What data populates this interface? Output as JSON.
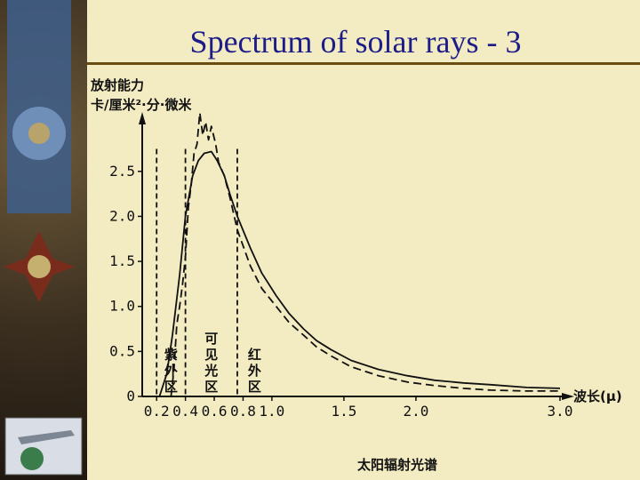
{
  "slide": {
    "title": "Spectrum of solar rays - 3"
  },
  "chart_data": {
    "type": "line",
    "title": "太阳辐射光谱",
    "ylabel": [
      "放射能力",
      "卡/厘米²·分·微米"
    ],
    "xlabel": "波长(μ)",
    "xlim": [
      0.1,
      3.0
    ],
    "ylim": [
      0,
      3.1
    ],
    "x_ticks": [
      0.2,
      0.4,
      0.6,
      0.8,
      1.0,
      1.5,
      2.0,
      3.0
    ],
    "x_tick_labels": [
      "0.2",
      "0.4",
      "0.6",
      "0.8",
      "1.0",
      "1.5",
      "2.0",
      "3.0"
    ],
    "y_ticks": [
      0,
      0.5,
      1.0,
      1.5,
      2.0,
      2.5
    ],
    "y_tick_labels": [
      "0",
      "0.5",
      "1.0",
      "1.5",
      "2.0",
      "2.5"
    ],
    "regions": [
      {
        "label": "紫外区",
        "from": 0.2,
        "to": 0.4
      },
      {
        "label": "可见光区",
        "from": 0.4,
        "to": 0.76
      },
      {
        "label": "红外区",
        "from": 0.76,
        "to": 1.0
      }
    ],
    "series": [
      {
        "style": "solid",
        "x": [
          0.22,
          0.27,
          0.31,
          0.36,
          0.4,
          0.45,
          0.49,
          0.53,
          0.58,
          0.62,
          0.67,
          0.71,
          0.76,
          0.85,
          0.93,
          1.03,
          1.12,
          1.22,
          1.31,
          1.41,
          1.55,
          1.74,
          1.94,
          2.13,
          2.33,
          2.52,
          2.77,
          3.0
        ],
        "y": [
          0,
          0.25,
          0.68,
          1.35,
          2.0,
          2.45,
          2.62,
          2.7,
          2.72,
          2.62,
          2.45,
          2.24,
          2.0,
          1.65,
          1.37,
          1.12,
          0.92,
          0.75,
          0.62,
          0.52,
          0.4,
          0.3,
          0.23,
          0.18,
          0.15,
          0.13,
          0.1,
          0.09
        ]
      },
      {
        "style": "dashed",
        "x": [
          0.3,
          0.32,
          0.34,
          0.36,
          0.38,
          0.4,
          0.42,
          0.44,
          0.46,
          0.48,
          0.5,
          0.52,
          0.54,
          0.56,
          0.58,
          0.61,
          0.63,
          0.67,
          0.71,
          0.76,
          0.85,
          0.93,
          1.03,
          1.12,
          1.22,
          1.31,
          1.41,
          1.55,
          1.74,
          1.94,
          2.13,
          2.33,
          2.52,
          2.77,
          3.0
        ],
        "y": [
          0,
          0.3,
          0.8,
          1.0,
          1.25,
          1.55,
          2.1,
          2.35,
          2.7,
          2.8,
          3.15,
          2.9,
          3.05,
          2.85,
          3.0,
          2.8,
          2.6,
          2.45,
          2.2,
          1.85,
          1.45,
          1.2,
          1.0,
          0.82,
          0.68,
          0.55,
          0.45,
          0.33,
          0.23,
          0.16,
          0.12,
          0.09,
          0.07,
          0.06,
          0.06
        ]
      }
    ]
  },
  "decor": {
    "accent": "#1d1d8a",
    "rule": "#6b4d12"
  }
}
